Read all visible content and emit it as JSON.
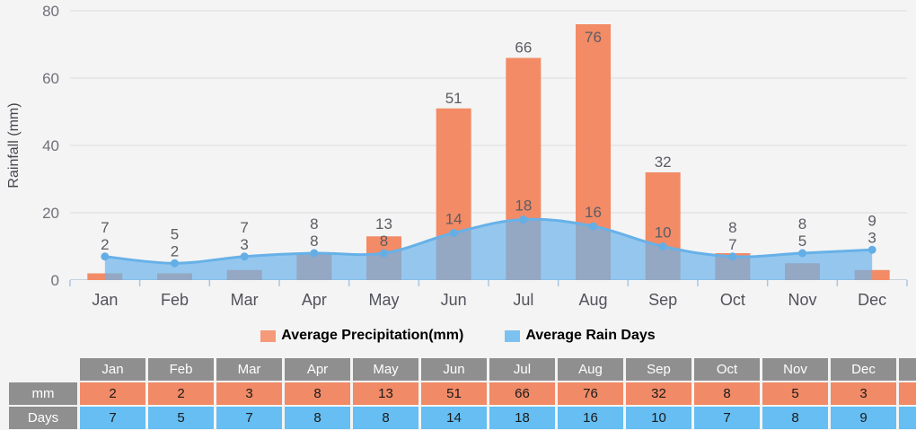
{
  "page": {
    "background": "#f4f4f4"
  },
  "chart_data": {
    "type": "bar+area",
    "categories": [
      "Jan",
      "Feb",
      "Mar",
      "Apr",
      "May",
      "Jun",
      "Jul",
      "Aug",
      "Sep",
      "Oct",
      "Nov",
      "Dec"
    ],
    "series": [
      {
        "name": "Average Precipitation(mm)",
        "type": "bar",
        "color": "#F28B66",
        "values": [
          2,
          2,
          3,
          8,
          13,
          51,
          66,
          76,
          32,
          8,
          5,
          3
        ]
      },
      {
        "name": "Average Rain Days",
        "type": "area",
        "line_color": "#67B1E8",
        "fill_color": "#6CB4EB",
        "fill_opacity": 0.7,
        "marker_color": "#64AEE6",
        "values": [
          7,
          5,
          7,
          8,
          8,
          14,
          18,
          16,
          10,
          7,
          8,
          9
        ]
      }
    ],
    "title": "",
    "xlabel": "",
    "ylabel": "Rainfall (mm)",
    "ylim": [
      0,
      80
    ],
    "yticks": [
      0,
      20,
      40,
      60,
      80
    ],
    "grid": true,
    "gridline_color": "#dbdbdb",
    "axis_line_color": "#c6d3dd",
    "tick_color": "#a9c7e2",
    "legend_position": "bottom"
  },
  "legend": {
    "items": [
      {
        "label": "Average Precipitation(mm)",
        "swatch_color": "#F49A78"
      },
      {
        "label": "Average Rain Days",
        "swatch_color": "#7CC2F0"
      }
    ]
  },
  "table": {
    "header_bg": "#8F8F8F",
    "columns": [
      "Jan",
      "Feb",
      "Mar",
      "Apr",
      "May",
      "Jun",
      "Jul",
      "Aug",
      "Sep",
      "Oct",
      "Nov",
      "Dec"
    ],
    "rows": [
      {
        "label": "mm",
        "cell_bg": "#F18A66",
        "values": [
          2,
          2,
          3,
          8,
          13,
          51,
          66,
          76,
          32,
          8,
          5,
          3
        ]
      },
      {
        "label": "Days",
        "cell_bg": "#66BEF2",
        "values": [
          7,
          5,
          7,
          8,
          8,
          14,
          18,
          16,
          10,
          7,
          8,
          9
        ]
      }
    ],
    "clipped_column": {
      "header": "",
      "mm": "",
      "days": ""
    }
  }
}
